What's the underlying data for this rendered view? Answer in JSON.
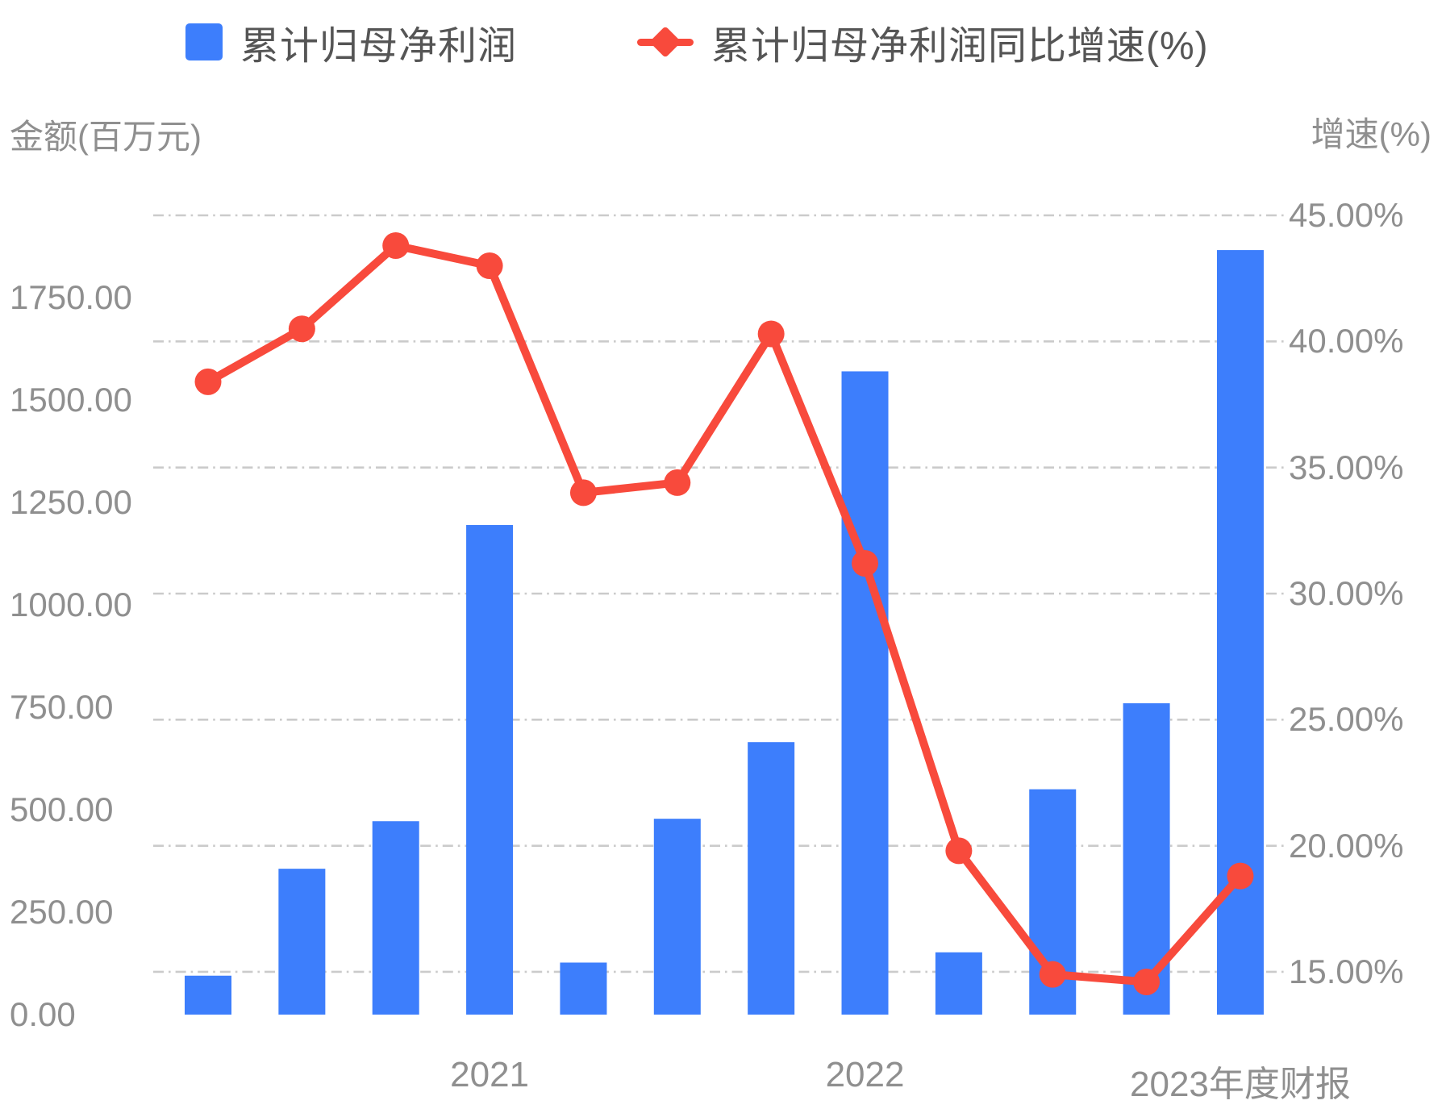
{
  "legend": {
    "items": [
      {
        "label": "累计归母净利润",
        "icon": "bar-swatch",
        "color": "#3d7efc"
      },
      {
        "label": "累计归母净利润同比增速(%)",
        "icon": "line-diamond-marker",
        "color": "#f84a3c"
      }
    ]
  },
  "axes": {
    "left": {
      "title": "金额(百万元)",
      "tick_labels": [
        "0.00",
        "250.00",
        "500.00",
        "750.00",
        "1000.00",
        "1250.00",
        "1500.00",
        "1750.00"
      ]
    },
    "right": {
      "title": "增速(%)",
      "tick_labels": [
        "45.00%",
        "40.00%",
        "35.00%",
        "30.00%",
        "25.00%",
        "20.00%",
        "15.00%"
      ]
    },
    "x": {
      "labels": [
        {
          "text": "2021",
          "category": 4
        },
        {
          "text": "2022",
          "category": 8
        },
        {
          "text": "2023年度财报",
          "category": 12
        }
      ]
    }
  },
  "chart_data": {
    "type": "bar+line dual-y-axis",
    "n_categories": 12,
    "x_tick_labels": [
      "2021",
      "2022",
      "2023年度财报"
    ],
    "x_tick_category_index": [
      4,
      8,
      12
    ],
    "series": [
      {
        "name": "累计归母净利润",
        "type": "bar",
        "axis": "left",
        "unit": "百万元",
        "color": "#3d7efc",
        "values": [
          95,
          356,
          472,
          1195,
          127,
          478,
          665,
          1570,
          152,
          550,
          760,
          1866
        ]
      },
      {
        "name": "累计归母净利润同比增速(%)",
        "type": "line",
        "axis": "right",
        "unit": "%",
        "color": "#f84a3c",
        "values": [
          38.4,
          40.5,
          43.8,
          43.0,
          34.0,
          34.4,
          40.3,
          31.2,
          19.8,
          14.9,
          14.6,
          18.8
        ]
      }
    ],
    "left_axis": {
      "label": "金额(百万元)",
      "ticks": [
        0,
        250,
        500,
        750,
        1000,
        1250,
        1500,
        1750
      ],
      "tick_step": 250
    },
    "right_axis": {
      "label": "增速(%)",
      "ticks": [
        45,
        40,
        35,
        30,
        25,
        20,
        15
      ],
      "tick_step": 5,
      "format": "0.00%"
    },
    "grid": {
      "horizontal": true,
      "style": "dash-dot",
      "aligned_to": "right-axis"
    },
    "legend_position": "top-center"
  }
}
